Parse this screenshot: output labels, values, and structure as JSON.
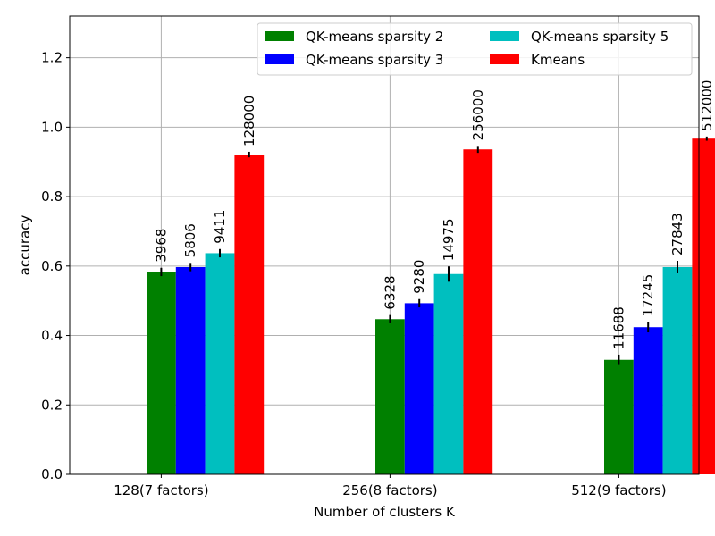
{
  "chart_data": {
    "type": "bar",
    "categories": [
      "128(7 factors)",
      "256(8 factors)",
      "512(9 factors)"
    ],
    "xlabel": "Number of clusters K",
    "ylabel": "accuracy",
    "ylim": [
      0,
      1.32
    ],
    "yticks": [
      0.0,
      0.2,
      0.4,
      0.6,
      0.8,
      1.0,
      1.2
    ],
    "ytick_labels": [
      "0.0",
      "0.2",
      "0.4",
      "0.6",
      "0.8",
      "1.0",
      "1.2"
    ],
    "grid": true,
    "legend_position": "top-right",
    "legend_columns": 2,
    "series": [
      {
        "name": "QK-means sparsity 2",
        "color": "#008000",
        "values": [
          0.583,
          0.447,
          0.33
        ],
        "errors": [
          0.012,
          0.012,
          0.015
        ],
        "labels": [
          "3968",
          "6328",
          "11688"
        ]
      },
      {
        "name": "QK-means sparsity 3",
        "color": "#0000ff",
        "values": [
          0.597,
          0.493,
          0.424
        ],
        "errors": [
          0.012,
          0.012,
          0.015
        ],
        "labels": [
          "5806",
          "9280",
          "17245"
        ]
      },
      {
        "name": "QK-means sparsity 5",
        "color": "#00bfbf",
        "values": [
          0.637,
          0.577,
          0.597
        ],
        "errors": [
          0.012,
          0.022,
          0.018
        ],
        "labels": [
          "9411",
          "14975",
          "27843"
        ]
      },
      {
        "name": "Kmeans",
        "color": "#ff0000",
        "values": [
          0.921,
          0.936,
          0.967
        ],
        "errors": [
          0.008,
          0.01,
          0.006
        ],
        "labels": [
          "128000",
          "256000",
          "512000"
        ]
      }
    ]
  }
}
